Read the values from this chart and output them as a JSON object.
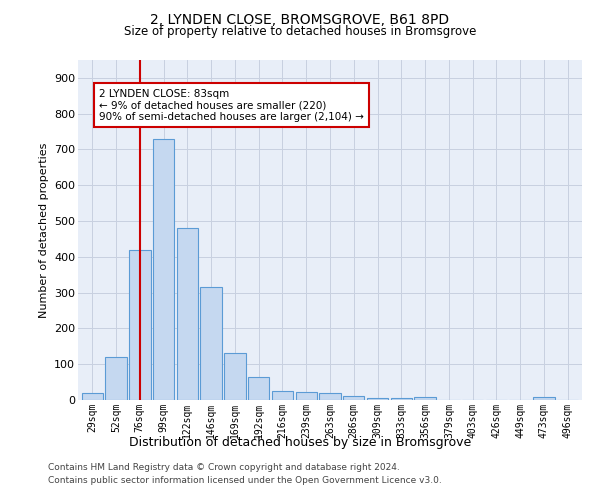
{
  "title1": "2, LYNDEN CLOSE, BROMSGROVE, B61 8PD",
  "title2": "Size of property relative to detached houses in Bromsgrove",
  "xlabel": "Distribution of detached houses by size in Bromsgrove",
  "ylabel": "Number of detached properties",
  "categories": [
    "29sqm",
    "52sqm",
    "76sqm",
    "99sqm",
    "122sqm",
    "146sqm",
    "169sqm",
    "192sqm",
    "216sqm",
    "239sqm",
    "263sqm",
    "286sqm",
    "309sqm",
    "333sqm",
    "356sqm",
    "379sqm",
    "403sqm",
    "426sqm",
    "449sqm",
    "473sqm",
    "496sqm"
  ],
  "values": [
    20,
    120,
    420,
    730,
    480,
    315,
    130,
    65,
    25,
    22,
    20,
    10,
    5,
    5,
    8,
    0,
    0,
    0,
    0,
    8,
    0
  ],
  "bar_color": "#c5d8f0",
  "bar_edge_color": "#5b9bd5",
  "vline_x_idx": 2,
  "vline_color": "#cc0000",
  "annotation_text": "2 LYNDEN CLOSE: 83sqm\n← 9% of detached houses are smaller (220)\n90% of semi-detached houses are larger (2,104) →",
  "annotation_box_color": "#ffffff",
  "annotation_box_edge": "#cc0000",
  "ylim": [
    0,
    950
  ],
  "yticks": [
    0,
    100,
    200,
    300,
    400,
    500,
    600,
    700,
    800,
    900
  ],
  "grid_color": "#c8d0e0",
  "bg_color": "#e8eef8",
  "footer1": "Contains HM Land Registry data © Crown copyright and database right 2024.",
  "footer2": "Contains public sector information licensed under the Open Government Licence v3.0."
}
